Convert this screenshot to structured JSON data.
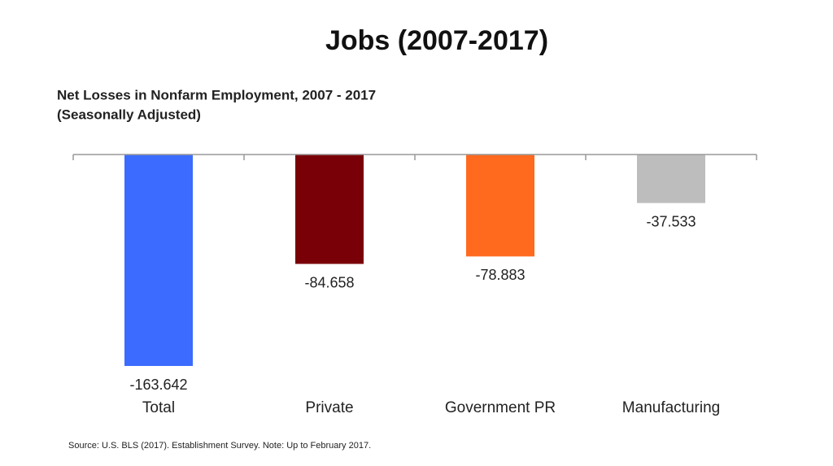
{
  "chart_data": {
    "type": "bar",
    "title": "Jobs (2007-2017)",
    "subtitle": [
      "Net Losses in Nonfarm Employment, 2007 - 2017",
      "(Seasonally Adjusted)"
    ],
    "categories": [
      "Total",
      "Private",
      "Government PR",
      "Manufacturing"
    ],
    "values": [
      -163.642,
      -84.658,
      -78.883,
      -37.533
    ],
    "colors": [
      "#3b6cff",
      "#7a0008",
      "#ff6a1f",
      "#bdbdbd"
    ],
    "source": "Source: U.S. BLS (2017). Establishment Survey. Note: Up to February 2017."
  }
}
